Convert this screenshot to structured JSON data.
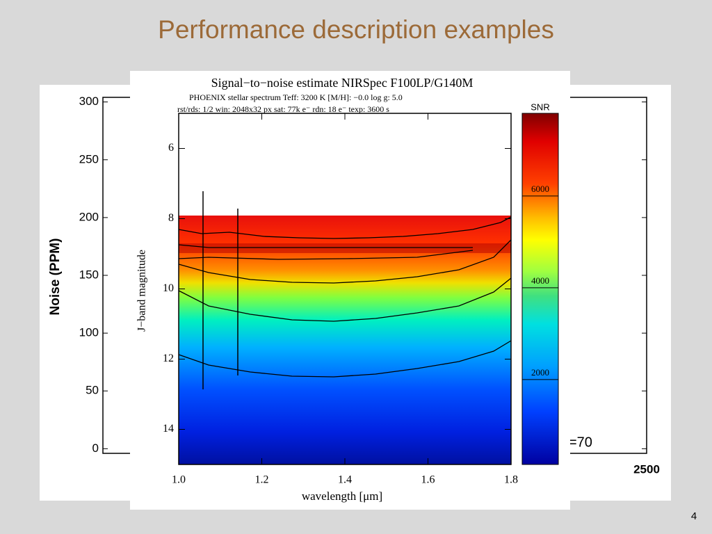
{
  "slide": {
    "title": "Performance description examples",
    "page_number": "4"
  },
  "chart_data": [
    {
      "type": "scatter",
      "y_label": "Noise (PPM)",
      "ylim": [
        -4,
        304
      ],
      "yticks": [
        0,
        50,
        100,
        150,
        200,
        250,
        300
      ],
      "xlim": [
        500,
        2500
      ],
      "xticks": [
        2500
      ],
      "annotation": "=70"
    },
    {
      "type": "heatmap",
      "title": "Signal−to−noise estimate NIRSpec F100LP/G140M",
      "subtitle": [
        "PHOENIX stellar spectrum   Teff: 3200 K   [M/H]: −0.0   log g: 5.0",
        "rst/rds: 1/2   win: 2048x32 px   sat: 77k e⁻   rdn: 18 e⁻   texp: 3600 s"
      ],
      "x_label": "wavelength [μm]",
      "y_label": "J−band magnitude",
      "xlim": [
        1.0,
        1.8
      ],
      "xticks": [
        {
          "value": 1.0,
          "label": "1.0"
        },
        1.2,
        1.4,
        1.6,
        1.8
      ],
      "ylim": [
        15,
        5
      ],
      "yticks": [
        6,
        8,
        10,
        12,
        14
      ],
      "colorbar_label": "SNR",
      "clim": [
        150,
        7800
      ],
      "cticks": [
        2000,
        4000,
        6000
      ]
    }
  ]
}
